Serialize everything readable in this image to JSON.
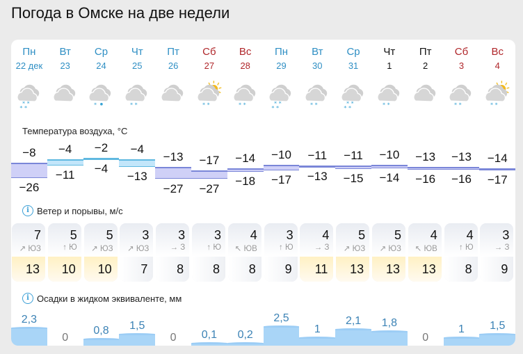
{
  "page": {
    "title": "Погода в Омске на две недели"
  },
  "days": [
    {
      "dow": "Пн",
      "date": "22 дек",
      "color": "blue",
      "icon": "cloudy-snow-heavy",
      "tmax": "−8",
      "tmin": "−26",
      "tmax_n": -8,
      "tmin_n": -26,
      "wind": "7",
      "dir_arrow": "↗",
      "dir": "ЮЗ",
      "gust": "13",
      "gust_hi": true,
      "precip": "2,3",
      "precip_n": 2.3
    },
    {
      "dow": "Вт",
      "date": "23",
      "color": "blue",
      "icon": "cloudy",
      "tmax": "−4",
      "tmin": "−11",
      "tmax_n": -4,
      "tmin_n": -11,
      "wind": "5",
      "dir_arrow": "↑",
      "dir": "Ю",
      "gust": "10",
      "gust_hi": true,
      "precip": "0",
      "precip_n": 0
    },
    {
      "dow": "Ср",
      "date": "24",
      "color": "blue",
      "icon": "cloudy-sleet",
      "tmax": "−2",
      "tmin": "−4",
      "tmax_n": -2,
      "tmin_n": -4,
      "wind": "5",
      "dir_arrow": "↗",
      "dir": "ЮЗ",
      "gust": "10",
      "gust_hi": true,
      "precip": "0,8",
      "precip_n": 0.8
    },
    {
      "dow": "Чт",
      "date": "25",
      "color": "blue",
      "icon": "cloudy-snow",
      "tmax": "−4",
      "tmin": "−13",
      "tmax_n": -4,
      "tmin_n": -13,
      "wind": "3",
      "dir_arrow": "↗",
      "dir": "ЮЗ",
      "gust": "7",
      "gust_hi": false,
      "precip": "1,5",
      "precip_n": 1.5
    },
    {
      "dow": "Пт",
      "date": "26",
      "color": "blue",
      "icon": "cloudy",
      "tmax": "−13",
      "tmin": "−27",
      "tmax_n": -13,
      "tmin_n": -27,
      "wind": "3",
      "dir_arrow": "→",
      "dir": "З",
      "gust": "8",
      "gust_hi": false,
      "precip": "0",
      "precip_n": 0
    },
    {
      "dow": "Сб",
      "date": "27",
      "color": "red",
      "icon": "partly-cloudy-snow",
      "tmax": "−17",
      "tmin": "−27",
      "tmax_n": -17,
      "tmin_n": -27,
      "wind": "3",
      "dir_arrow": "↑",
      "dir": "Ю",
      "gust": "8",
      "gust_hi": false,
      "precip": "0,1",
      "precip_n": 0.1
    },
    {
      "dow": "Вс",
      "date": "28",
      "color": "red",
      "icon": "cloudy-snow",
      "tmax": "−14",
      "tmin": "−18",
      "tmax_n": -14,
      "tmin_n": -18,
      "wind": "4",
      "dir_arrow": "↖",
      "dir": "ЮВ",
      "gust": "8",
      "gust_hi": false,
      "precip": "0,2",
      "precip_n": 0.2
    },
    {
      "dow": "Пн",
      "date": "29",
      "color": "blue",
      "icon": "cloudy-snow-heavy",
      "tmax": "−10",
      "tmin": "−17",
      "tmax_n": -10,
      "tmin_n": -17,
      "wind": "3",
      "dir_arrow": "↑",
      "dir": "Ю",
      "gust": "9",
      "gust_hi": false,
      "precip": "2,5",
      "precip_n": 2.5
    },
    {
      "dow": "Вт",
      "date": "30",
      "color": "blue",
      "icon": "cloudy-snow",
      "tmax": "−11",
      "tmin": "−13",
      "tmax_n": -11,
      "tmin_n": -13,
      "wind": "4",
      "dir_arrow": "→",
      "dir": "З",
      "gust": "11",
      "gust_hi": true,
      "precip": "1",
      "precip_n": 1
    },
    {
      "dow": "Ср",
      "date": "31",
      "color": "blue",
      "icon": "cloudy-snow-heavy",
      "tmax": "−11",
      "tmin": "−15",
      "tmax_n": -11,
      "tmin_n": -15,
      "wind": "5",
      "dir_arrow": "↗",
      "dir": "ЮЗ",
      "gust": "13",
      "gust_hi": true,
      "precip": "2,1",
      "precip_n": 2.1
    },
    {
      "dow": "Чт",
      "date": "1",
      "color": "black",
      "icon": "cloudy-snow",
      "tmax": "−10",
      "tmin": "−14",
      "tmax_n": -10,
      "tmin_n": -14,
      "wind": "5",
      "dir_arrow": "↗",
      "dir": "ЮЗ",
      "gust": "13",
      "gust_hi": true,
      "precip": "1,8",
      "precip_n": 1.8
    },
    {
      "dow": "Пт",
      "date": "2",
      "color": "black",
      "icon": "cloudy",
      "tmax": "−13",
      "tmin": "−16",
      "tmax_n": -13,
      "tmin_n": -16,
      "wind": "4",
      "dir_arrow": "↖",
      "dir": "ЮВ",
      "gust": "13",
      "gust_hi": true,
      "precip": "0",
      "precip_n": 0
    },
    {
      "dow": "Сб",
      "date": "3",
      "color": "red",
      "icon": "cloudy-snow",
      "tmax": "−13",
      "tmin": "−16",
      "tmax_n": -13,
      "tmin_n": -16,
      "wind": "4",
      "dir_arrow": "↑",
      "dir": "Ю",
      "gust": "8",
      "gust_hi": false,
      "precip": "1",
      "precip_n": 1
    },
    {
      "dow": "Вс",
      "date": "4",
      "color": "red",
      "icon": "partly-cloudy-snow",
      "tmax": "−14",
      "tmin": "−17",
      "tmax_n": -14,
      "tmin_n": -17,
      "wind": "3",
      "dir_arrow": "→",
      "dir": "З",
      "gust": "9",
      "gust_hi": false,
      "precip": "1,5",
      "precip_n": 1.5
    }
  ],
  "sections": {
    "temperature": {
      "label": "Температура воздуха, °C"
    },
    "wind": {
      "label": "Ветер и порывы, м/с",
      "info_icon": "info-icon"
    },
    "precip": {
      "label": "Осадки в жидком эквиваленте, мм",
      "info_icon": "info-icon"
    }
  },
  "colors": {
    "weekday": "#2f8fc4",
    "weekend": "#b0272b",
    "temp_warm_fill": "#c3e6fa",
    "temp_warm_line": "#5fb8e0",
    "temp_cold_fill": "#cfd0f7",
    "temp_cold_line": "#7a86d8",
    "precip_fill": "#a9d5f7",
    "gust_high": "#fff1c4"
  }
}
